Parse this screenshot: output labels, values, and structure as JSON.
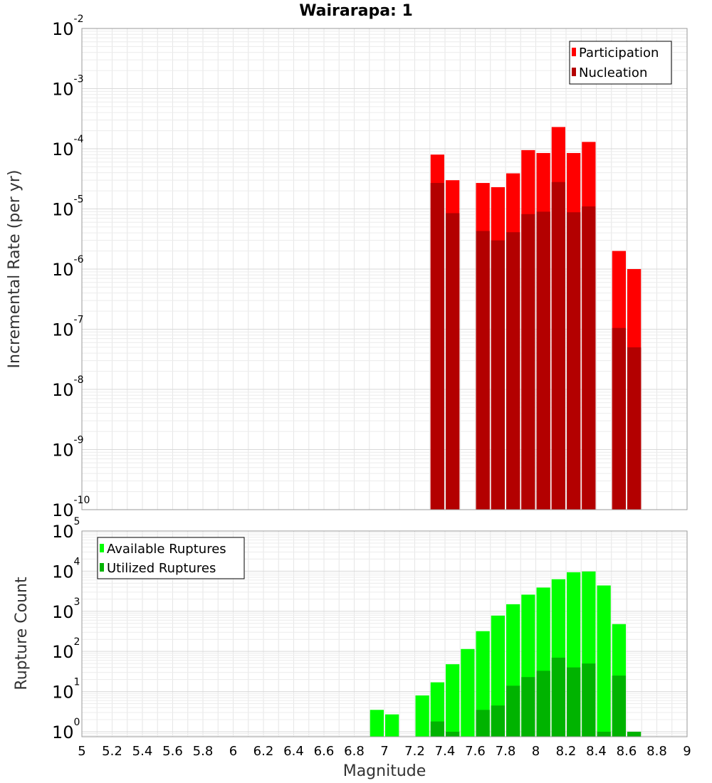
{
  "chart_data": [
    {
      "type": "bar",
      "title": "Wairarapa: 1",
      "xlabel": "",
      "ylabel": "Incremental Rate (per yr)",
      "yscale": "log",
      "ylim": [
        1e-10,
        0.01
      ],
      "xlim": [
        5,
        9
      ],
      "ytick_labels": [
        {
          "base": "10",
          "exp": "-10"
        },
        {
          "base": "10",
          "exp": "-9"
        },
        {
          "base": "10",
          "exp": "-8"
        },
        {
          "base": "10",
          "exp": "-7"
        },
        {
          "base": "10",
          "exp": "-6"
        },
        {
          "base": "10",
          "exp": "-5"
        },
        {
          "base": "10",
          "exp": "-4"
        },
        {
          "base": "10",
          "exp": "-3"
        },
        {
          "base": "10",
          "exp": "-2"
        }
      ],
      "grid": true,
      "legend_position": "top-right",
      "series": [
        {
          "name": "Participation",
          "color": "#ff0000",
          "x": [
            7.35,
            7.45,
            7.65,
            7.75,
            7.85,
            7.95,
            8.05,
            8.15,
            8.25,
            8.35,
            8.55,
            8.65
          ],
          "values": [
            8e-05,
            3e-05,
            2.7e-05,
            2.3e-05,
            3.9e-05,
            9.5e-05,
            8.5e-05,
            0.00023,
            8.5e-05,
            0.00013,
            2e-06,
            1e-06
          ]
        },
        {
          "name": "Nucleation",
          "color": "#b30000",
          "x": [
            7.35,
            7.45,
            7.65,
            7.75,
            7.85,
            7.95,
            8.05,
            8.15,
            8.25,
            8.35,
            8.55,
            8.65
          ],
          "values": [
            2.7e-05,
            8.5e-06,
            4.3e-06,
            3e-06,
            4.1e-06,
            8.2e-06,
            9e-06,
            2.8e-05,
            8.8e-06,
            1.1e-05,
            1.05e-07,
            5e-08
          ]
        }
      ]
    },
    {
      "type": "bar",
      "title": "",
      "xlabel": "Magnitude",
      "ylabel": "Rupture Count",
      "yscale": "log",
      "ylim": [
        0.75,
        100000.0
      ],
      "xlim": [
        5,
        9
      ],
      "ytick_labels": [
        {
          "base": "10",
          "exp": "0"
        },
        {
          "base": "10",
          "exp": "1"
        },
        {
          "base": "10",
          "exp": "2"
        },
        {
          "base": "10",
          "exp": "3"
        },
        {
          "base": "10",
          "exp": "4"
        },
        {
          "base": "10",
          "exp": "5"
        }
      ],
      "xtick_labels": [
        "5",
        "5.2",
        "5.4",
        "5.6",
        "5.8",
        "6",
        "6.2",
        "6.4",
        "6.6",
        "6.8",
        "7",
        "7.2",
        "7.4",
        "7.6",
        "7.8",
        "8",
        "8.2",
        "8.4",
        "8.6",
        "8.8",
        "9"
      ],
      "grid": true,
      "legend_position": "top-left",
      "series": [
        {
          "name": "Available Ruptures",
          "color": "#00ff00",
          "x": [
            6.95,
            7.05,
            7.25,
            7.35,
            7.45,
            7.55,
            7.65,
            7.75,
            7.85,
            7.95,
            8.05,
            8.15,
            8.25,
            8.35,
            8.45,
            8.55
          ],
          "values": [
            3.5,
            2.7,
            8,
            17,
            48,
            115,
            320,
            780,
            1500,
            2600,
            3900,
            6300,
            9400,
            9800,
            4400,
            480
          ]
        },
        {
          "name": "Utilized Ruptures",
          "color": "#00b300",
          "x": [
            7.35,
            7.45,
            7.65,
            7.75,
            7.85,
            7.95,
            8.05,
            8.15,
            8.25,
            8.35,
            8.45,
            8.55,
            8.65
          ],
          "values": [
            1.8,
            1,
            3.5,
            4.5,
            14,
            23,
            33,
            70,
            40,
            50,
            1,
            25,
            1
          ]
        }
      ]
    }
  ]
}
